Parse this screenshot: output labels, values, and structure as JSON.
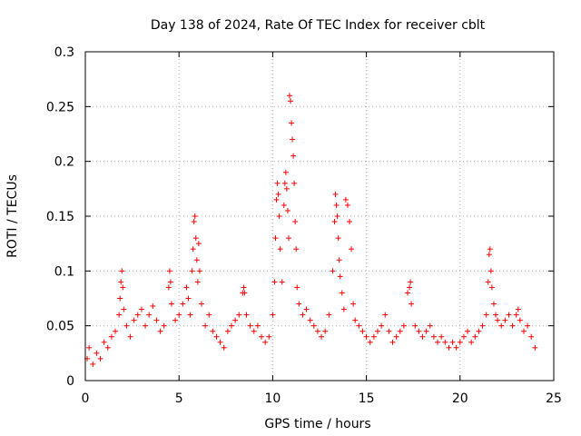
{
  "chart_data": {
    "type": "scatter",
    "title": "Day 138 of 2024, Rate Of TEC Index for receiver cblt",
    "xlabel": "GPS time / hours",
    "ylabel": "ROTI / TECUs",
    "xlim": [
      0,
      25
    ],
    "ylim": [
      0,
      0.3
    ],
    "x_ticks": [
      "0",
      "5",
      "10",
      "15",
      "20",
      "25"
    ],
    "y_ticks": [
      "0",
      "0.05",
      "0.1",
      "0.15",
      "0.2",
      "0.25",
      "0.3"
    ],
    "grid": true,
    "marker": "plus",
    "color": "#ff0000",
    "points": [
      [
        0.1,
        0.02
      ],
      [
        0.2,
        0.03
      ],
      [
        0.4,
        0.015
      ],
      [
        0.6,
        0.025
      ],
      [
        0.8,
        0.02
      ],
      [
        1.0,
        0.035
      ],
      [
        1.2,
        0.03
      ],
      [
        1.4,
        0.04
      ],
      [
        1.6,
        0.045
      ],
      [
        1.8,
        0.06
      ],
      [
        1.85,
        0.075
      ],
      [
        1.9,
        0.09
      ],
      [
        1.95,
        0.1
      ],
      [
        2.0,
        0.085
      ],
      [
        2.05,
        0.065
      ],
      [
        2.2,
        0.05
      ],
      [
        2.4,
        0.04
      ],
      [
        2.6,
        0.055
      ],
      [
        2.8,
        0.06
      ],
      [
        3.0,
        0.065
      ],
      [
        3.2,
        0.05
      ],
      [
        3.4,
        0.06
      ],
      [
        3.6,
        0.068
      ],
      [
        3.8,
        0.055
      ],
      [
        4.0,
        0.045
      ],
      [
        4.2,
        0.05
      ],
      [
        4.45,
        0.085
      ],
      [
        4.5,
        0.1
      ],
      [
        4.55,
        0.09
      ],
      [
        4.6,
        0.07
      ],
      [
        4.8,
        0.055
      ],
      [
        5.0,
        0.06
      ],
      [
        5.2,
        0.07
      ],
      [
        5.4,
        0.085
      ],
      [
        5.5,
        0.075
      ],
      [
        5.6,
        0.06
      ],
      [
        5.7,
        0.1
      ],
      [
        5.75,
        0.12
      ],
      [
        5.8,
        0.145
      ],
      [
        5.85,
        0.15
      ],
      [
        5.9,
        0.13
      ],
      [
        5.95,
        0.11
      ],
      [
        6.0,
        0.09
      ],
      [
        6.05,
        0.125
      ],
      [
        6.1,
        0.1
      ],
      [
        6.2,
        0.07
      ],
      [
        6.4,
        0.05
      ],
      [
        6.6,
        0.06
      ],
      [
        6.8,
        0.045
      ],
      [
        7.0,
        0.04
      ],
      [
        7.2,
        0.035
      ],
      [
        7.4,
        0.03
      ],
      [
        7.6,
        0.045
      ],
      [
        7.8,
        0.05
      ],
      [
        8.0,
        0.055
      ],
      [
        8.2,
        0.06
      ],
      [
        8.4,
        0.08
      ],
      [
        8.45,
        0.085
      ],
      [
        8.5,
        0.08
      ],
      [
        8.6,
        0.06
      ],
      [
        8.8,
        0.05
      ],
      [
        9.0,
        0.045
      ],
      [
        9.2,
        0.05
      ],
      [
        9.4,
        0.04
      ],
      [
        9.6,
        0.035
      ],
      [
        9.8,
        0.04
      ],
      [
        10.0,
        0.06
      ],
      [
        10.1,
        0.09
      ],
      [
        10.15,
        0.13
      ],
      [
        10.2,
        0.165
      ],
      [
        10.25,
        0.18
      ],
      [
        10.3,
        0.17
      ],
      [
        10.35,
        0.15
      ],
      [
        10.4,
        0.12
      ],
      [
        10.5,
        0.09
      ],
      [
        10.6,
        0.16
      ],
      [
        10.65,
        0.18
      ],
      [
        10.7,
        0.19
      ],
      [
        10.75,
        0.175
      ],
      [
        10.8,
        0.155
      ],
      [
        10.85,
        0.13
      ],
      [
        10.9,
        0.26
      ],
      [
        10.95,
        0.255
      ],
      [
        11.0,
        0.235
      ],
      [
        11.05,
        0.22
      ],
      [
        11.1,
        0.205
      ],
      [
        11.15,
        0.18
      ],
      [
        11.2,
        0.145
      ],
      [
        11.25,
        0.12
      ],
      [
        11.3,
        0.085
      ],
      [
        11.4,
        0.07
      ],
      [
        11.6,
        0.06
      ],
      [
        11.8,
        0.065
      ],
      [
        12.0,
        0.055
      ],
      [
        12.2,
        0.05
      ],
      [
        12.4,
        0.045
      ],
      [
        12.6,
        0.04
      ],
      [
        12.8,
        0.045
      ],
      [
        13.0,
        0.06
      ],
      [
        13.2,
        0.1
      ],
      [
        13.3,
        0.145
      ],
      [
        13.35,
        0.17
      ],
      [
        13.4,
        0.16
      ],
      [
        13.45,
        0.15
      ],
      [
        13.5,
        0.13
      ],
      [
        13.55,
        0.11
      ],
      [
        13.6,
        0.095
      ],
      [
        13.7,
        0.08
      ],
      [
        13.8,
        0.065
      ],
      [
        13.9,
        0.165
      ],
      [
        14.0,
        0.16
      ],
      [
        14.1,
        0.145
      ],
      [
        14.2,
        0.12
      ],
      [
        14.3,
        0.07
      ],
      [
        14.4,
        0.055
      ],
      [
        14.6,
        0.05
      ],
      [
        14.8,
        0.045
      ],
      [
        15.0,
        0.04
      ],
      [
        15.2,
        0.035
      ],
      [
        15.4,
        0.04
      ],
      [
        15.6,
        0.045
      ],
      [
        15.8,
        0.05
      ],
      [
        16.0,
        0.06
      ],
      [
        16.2,
        0.045
      ],
      [
        16.4,
        0.035
      ],
      [
        16.6,
        0.04
      ],
      [
        16.8,
        0.045
      ],
      [
        17.0,
        0.05
      ],
      [
        17.2,
        0.08
      ],
      [
        17.3,
        0.085
      ],
      [
        17.35,
        0.09
      ],
      [
        17.4,
        0.07
      ],
      [
        17.6,
        0.05
      ],
      [
        17.8,
        0.045
      ],
      [
        18.0,
        0.04
      ],
      [
        18.2,
        0.045
      ],
      [
        18.4,
        0.05
      ],
      [
        18.6,
        0.04
      ],
      [
        18.8,
        0.035
      ],
      [
        19.0,
        0.04
      ],
      [
        19.2,
        0.035
      ],
      [
        19.4,
        0.03
      ],
      [
        19.6,
        0.035
      ],
      [
        19.8,
        0.03
      ],
      [
        20.0,
        0.035
      ],
      [
        20.2,
        0.04
      ],
      [
        20.4,
        0.045
      ],
      [
        20.6,
        0.035
      ],
      [
        20.8,
        0.04
      ],
      [
        21.0,
        0.045
      ],
      [
        21.2,
        0.05
      ],
      [
        21.4,
        0.06
      ],
      [
        21.5,
        0.09
      ],
      [
        21.55,
        0.115
      ],
      [
        21.6,
        0.12
      ],
      [
        21.65,
        0.1
      ],
      [
        21.7,
        0.085
      ],
      [
        21.8,
        0.07
      ],
      [
        21.9,
        0.06
      ],
      [
        22.0,
        0.055
      ],
      [
        22.2,
        0.05
      ],
      [
        22.4,
        0.055
      ],
      [
        22.6,
        0.06
      ],
      [
        22.8,
        0.05
      ],
      [
        23.0,
        0.06
      ],
      [
        23.1,
        0.065
      ],
      [
        23.2,
        0.055
      ],
      [
        23.4,
        0.045
      ],
      [
        23.6,
        0.05
      ],
      [
        23.8,
        0.04
      ],
      [
        24.0,
        0.03
      ]
    ]
  }
}
